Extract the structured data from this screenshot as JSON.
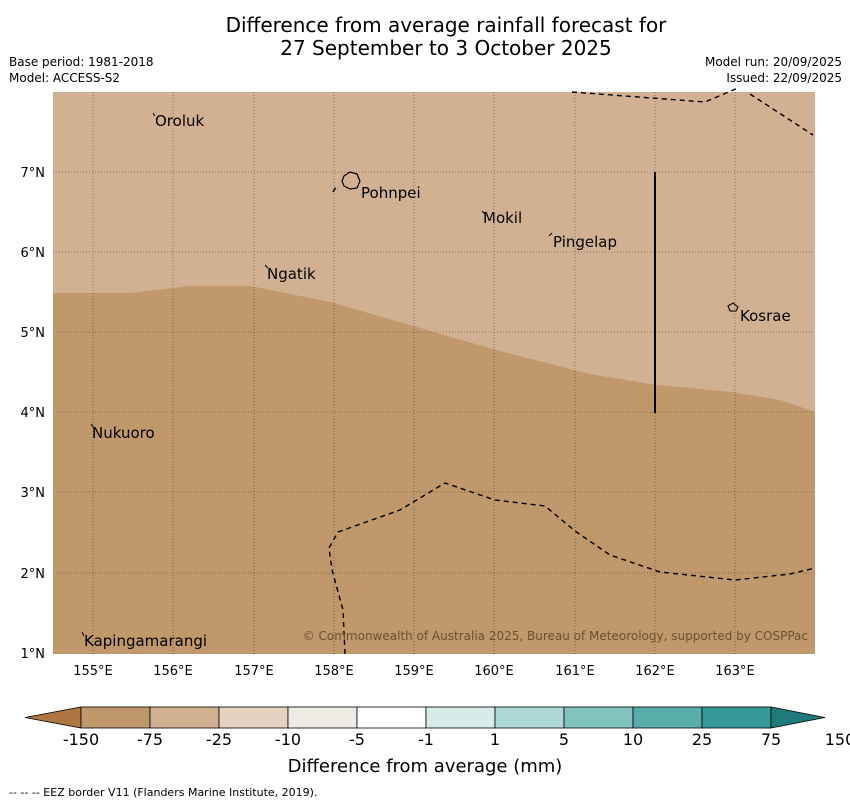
{
  "title": {
    "line1": "Difference from average rainfall forecast for",
    "line2": "27 September to 3 October 2025"
  },
  "meta_left": {
    "base_period": "Base period: 1981-2018",
    "model": "Model: ACCESS-S2"
  },
  "meta_right": {
    "model_run": "Model run: 20/09/2025",
    "issued": "Issued: 22/09/2025"
  },
  "map": {
    "lon_ticks": [
      "155°E",
      "156°E",
      "157°E",
      "158°E",
      "159°E",
      "160°E",
      "161°E",
      "162°E",
      "163°E"
    ],
    "lat_ticks": [
      "7°N",
      "6°N",
      "5°N",
      "4°N",
      "3°N",
      "2°N",
      "1°N"
    ],
    "places": {
      "oroluk": "Oroluk",
      "pohnpei": "Pohnpei",
      "mokil": "Mokil",
      "pingelap": "Pingelap",
      "ngatik": "Ngatik",
      "kosrae": "Kosrae",
      "nukuoro": "Nukuoro",
      "kapingamarangi": "Kapingamarangi"
    },
    "copyright": "© Commonwealth of Australia 2025, Bureau of Meteorology, supported by COSPPac",
    "colors": {
      "north_region": "#d2b192",
      "south_region": "#c1976c"
    }
  },
  "colorbar": {
    "labels": [
      "-150",
      "-75",
      "-25",
      "-10",
      "-5",
      "-1",
      "1",
      "5",
      "10",
      "25",
      "75",
      "150"
    ],
    "colors": [
      "#ad7642",
      "#c1976c",
      "#d2b192",
      "#e5d2c0",
      "#eeebe5",
      "#ffffff",
      "#d7ebe9",
      "#addad7",
      "#82c3bf",
      "#58acaa",
      "#349a98",
      "#1f7b79"
    ],
    "title": "Difference from average (mm)"
  },
  "footer": "--  --  -- EEZ border V11 (Flanders Marine Institute, 2019)."
}
